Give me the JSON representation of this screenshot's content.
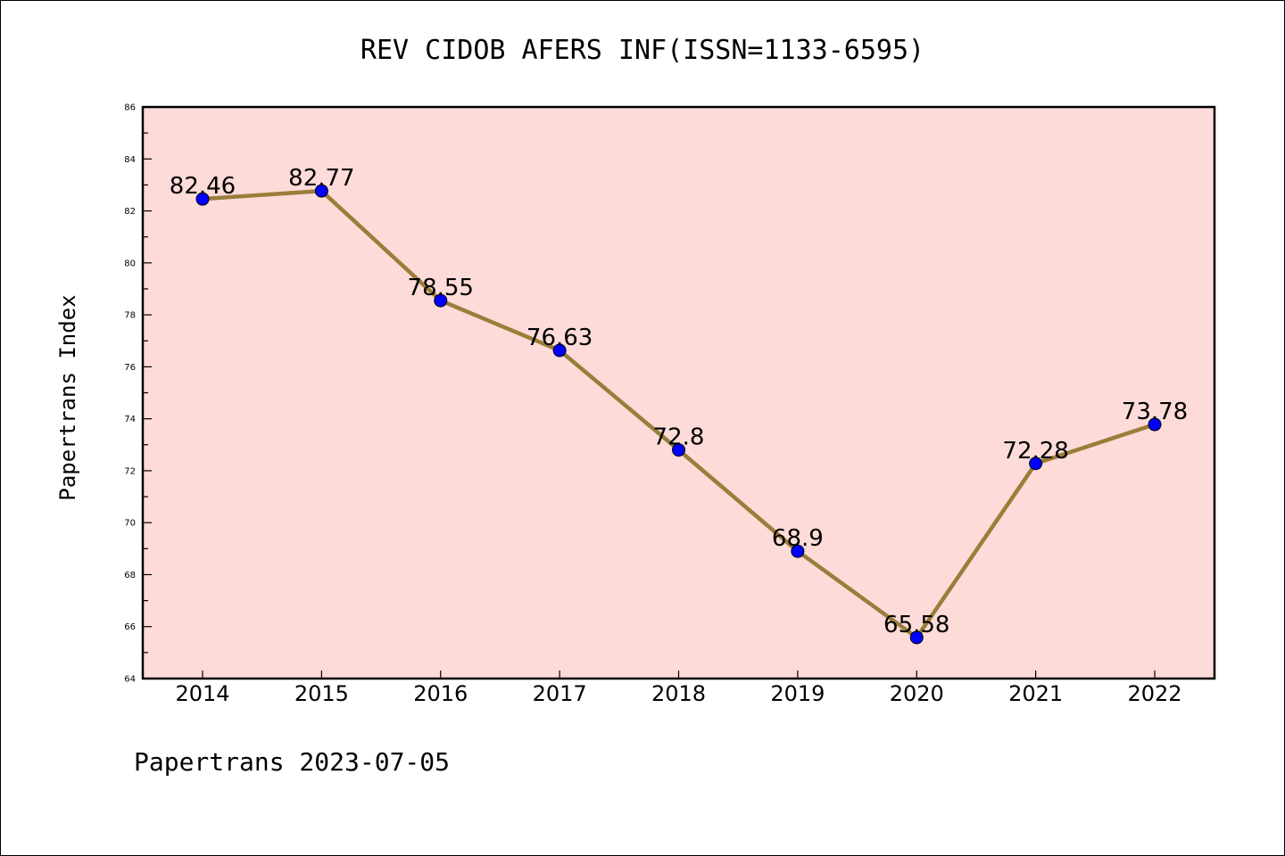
{
  "chart_data": {
    "type": "line",
    "title": "REV CIDOB AFERS INF(ISSN=1133-6595)",
    "ylabel": "Papertrans Index",
    "xlabel": "",
    "categories": [
      "2014",
      "2015",
      "2016",
      "2017",
      "2018",
      "2019",
      "2020",
      "2021",
      "2022"
    ],
    "series": [
      {
        "values": [
          82.46,
          82.77,
          78.55,
          76.63,
          72.8,
          68.9,
          65.58,
          72.28,
          73.78
        ],
        "labels": [
          "82.46",
          "82.77",
          "78.55",
          "76.63",
          "72.8",
          "68.9",
          "65.58",
          "72.28",
          "73.78"
        ]
      }
    ],
    "ylim": [
      64,
      86
    ],
    "yticks": [
      "64",
      "66",
      "68",
      "70",
      "72",
      "74",
      "76",
      "78",
      "80",
      "82",
      "84",
      "86"
    ],
    "grid": false,
    "legend": "none",
    "colors": {
      "plot_background": "#fddbd8",
      "line": "#9a7d3a",
      "marker": "#0000ff"
    }
  },
  "footer": "Papertrans 2023-07-05"
}
